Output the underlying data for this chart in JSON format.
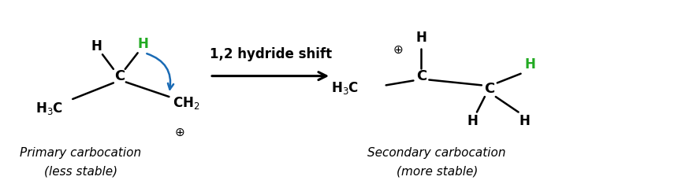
{
  "bg_color": "#ffffff",
  "blue_arrow_color": "#1a6bb5",
  "green_color": "#22aa22",
  "black_color": "#000000",
  "label_text": "1,2 hydride shift",
  "label_fontsize": 12,
  "primary_label1": "Primary carbocation",
  "primary_label2": "(less stable)",
  "secondary_label1": "Secondary carbocation",
  "secondary_label2": "(more stable)",
  "caption_fontsize": 11,
  "figsize": [
    8.74,
    2.48
  ],
  "dpi": 100
}
